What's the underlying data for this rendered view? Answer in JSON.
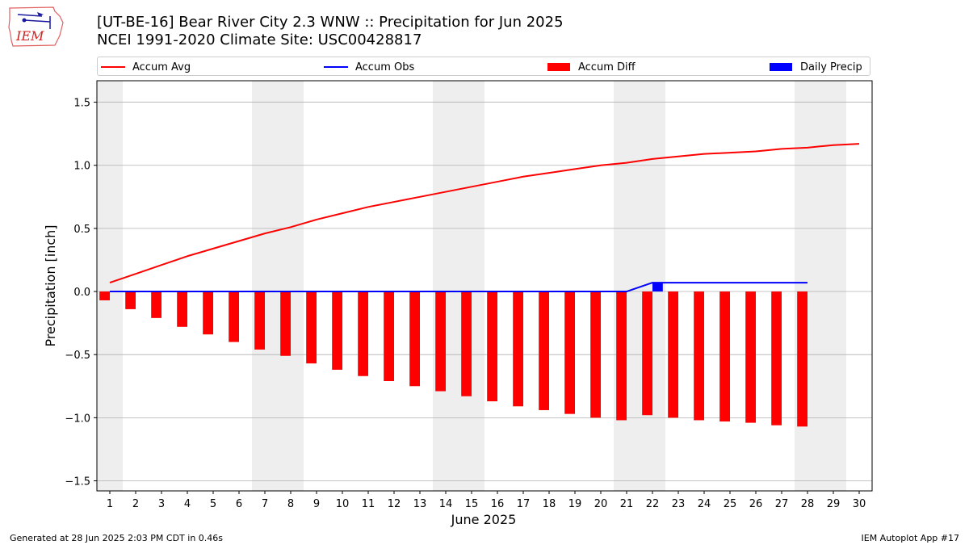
{
  "header": {
    "title_line1": "[UT-BE-16] Bear River City 2.3 WNW :: Precipitation for Jun 2025",
    "title_line2": "NCEI 1991-2020 Climate Site: USC00428817"
  },
  "logo": {
    "text": "IEM",
    "icon": "iowa-state-logo-icon"
  },
  "footer": {
    "left": "Generated at 28 Jun 2025 2:03 PM CDT in 0.46s",
    "right": "IEM Autoplot App #17"
  },
  "colors": {
    "accum_avg": "#ff0000",
    "accum_obs": "#0000ff",
    "accum_diff": "#ff0000",
    "daily_precip": "#0000ff",
    "weekend_band": "#eeeeee",
    "grid": "#b0b0b0"
  },
  "legend": {
    "placement": "top",
    "items": [
      {
        "label": "Accum Avg",
        "kind": "line",
        "color": "#ff0000"
      },
      {
        "label": "Accum Obs",
        "kind": "line",
        "color": "#0000ff"
      },
      {
        "label": "Accum Diff",
        "kind": "box",
        "color": "#ff0000"
      },
      {
        "label": "Daily Precip",
        "kind": "box",
        "color": "#0000ff"
      }
    ]
  },
  "chart_data": {
    "type": "bar",
    "title": "[UT-BE-16] Bear River City 2.3 WNW :: Precipitation for Jun 2025",
    "subtitle": "NCEI 1991-2020 Climate Site: USC00428817",
    "xlabel": "June 2025",
    "ylabel": "Precipitation [inch]",
    "xlim": [
      0.5,
      30.5
    ],
    "ylim": [
      -1.58,
      1.67
    ],
    "grid": "y",
    "x_ticks": [
      1,
      2,
      3,
      4,
      5,
      6,
      7,
      8,
      9,
      10,
      11,
      12,
      13,
      14,
      15,
      16,
      17,
      18,
      19,
      20,
      21,
      22,
      23,
      24,
      25,
      26,
      27,
      28,
      29,
      30
    ],
    "y_ticks": [
      -1.5,
      -1.0,
      -0.5,
      0.0,
      0.5,
      1.0,
      1.5
    ],
    "y_tick_labels": [
      "−1.5",
      "−1.0",
      "−0.5",
      "0.0",
      "0.5",
      "1.0",
      "1.5"
    ],
    "weekend_bands": [
      [
        0.5,
        1.5
      ],
      [
        6.5,
        8.5
      ],
      [
        13.5,
        15.5
      ],
      [
        20.5,
        22.5
      ],
      [
        27.5,
        29.5
      ]
    ],
    "series": [
      {
        "name": "Accum Avg",
        "type": "line",
        "color": "#ff0000",
        "x": [
          1,
          2,
          3,
          4,
          5,
          6,
          7,
          8,
          9,
          10,
          11,
          12,
          13,
          14,
          15,
          16,
          17,
          18,
          19,
          20,
          21,
          22,
          23,
          24,
          25,
          26,
          27,
          28,
          29,
          30
        ],
        "values": [
          0.07,
          0.14,
          0.21,
          0.28,
          0.34,
          0.4,
          0.46,
          0.51,
          0.57,
          0.62,
          0.67,
          0.71,
          0.75,
          0.79,
          0.83,
          0.87,
          0.91,
          0.94,
          0.97,
          1.0,
          1.02,
          1.05,
          1.07,
          1.09,
          1.1,
          1.11,
          1.13,
          1.14,
          1.16,
          1.17
        ]
      },
      {
        "name": "Accum Obs",
        "type": "line",
        "color": "#0000ff",
        "x": [
          1,
          2,
          3,
          4,
          5,
          6,
          7,
          8,
          9,
          10,
          11,
          12,
          13,
          14,
          15,
          16,
          17,
          18,
          19,
          20,
          21,
          22,
          23,
          24,
          25,
          26,
          27,
          28
        ],
        "values": [
          0,
          0,
          0,
          0,
          0,
          0,
          0,
          0,
          0,
          0,
          0,
          0,
          0,
          0,
          0,
          0,
          0,
          0,
          0,
          0,
          0,
          0.07,
          0.07,
          0.07,
          0.07,
          0.07,
          0.07,
          0.07
        ]
      },
      {
        "name": "Accum Diff",
        "type": "bar",
        "color": "#ff0000",
        "x": [
          1,
          2,
          3,
          4,
          5,
          6,
          7,
          8,
          9,
          10,
          11,
          12,
          13,
          14,
          15,
          16,
          17,
          18,
          19,
          20,
          21,
          22,
          23,
          24,
          25,
          26,
          27,
          28
        ],
        "values": [
          -0.07,
          -0.14,
          -0.21,
          -0.28,
          -0.34,
          -0.4,
          -0.46,
          -0.51,
          -0.57,
          -0.62,
          -0.67,
          -0.71,
          -0.75,
          -0.79,
          -0.83,
          -0.87,
          -0.91,
          -0.94,
          -0.97,
          -1.0,
          -1.02,
          -0.98,
          -1.0,
          -1.02,
          -1.03,
          -1.04,
          -1.06,
          -1.07
        ]
      },
      {
        "name": "Daily Precip",
        "type": "bar",
        "color": "#0000ff",
        "x": [
          22
        ],
        "values": [
          0.07
        ]
      }
    ]
  }
}
